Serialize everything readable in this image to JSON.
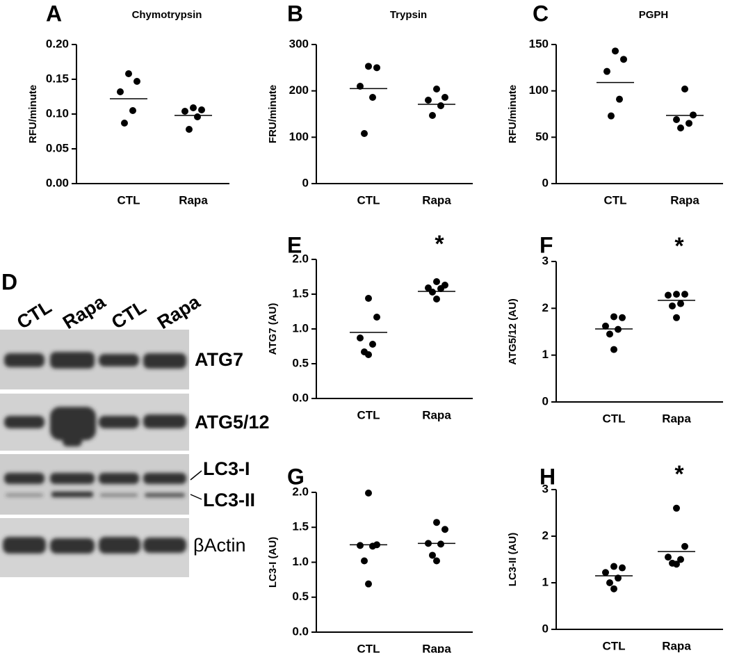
{
  "chart_data": [
    {
      "type": "dot",
      "label": "A",
      "title": "Chymotrypsin",
      "ylabel": "RFU/minute",
      "categories": [
        "CTL",
        "Rapa"
      ],
      "values": [
        [
          0.158,
          0.147,
          0.132,
          0.105,
          0.087
        ],
        [
          0.109,
          0.106,
          0.104,
          0.096,
          0.078
        ]
      ],
      "means": [
        0.122,
        0.098
      ],
      "ylim": [
        0,
        0.2
      ],
      "yticks": [
        {
          "value": 0,
          "label": "0.00"
        },
        0.05,
        {
          "value": 0.1,
          "label": "0.10"
        },
        0.15,
        {
          "value": 0.2,
          "label": "0.20"
        }
      ],
      "color": "#000000"
    },
    {
      "type": "dot",
      "label": "B",
      "title": "Trypsin",
      "ylabel": "FRU/minute",
      "categories": [
        "CTL",
        "Rapa"
      ],
      "values": [
        [
          253,
          250,
          210,
          186,
          108
        ],
        [
          204,
          186,
          180,
          168,
          147
        ]
      ],
      "means": [
        205,
        171
      ],
      "ylim": [
        0,
        300
      ],
      "yticks": [
        0,
        100,
        200,
        300
      ],
      "color": "#000000"
    },
    {
      "type": "dot",
      "label": "C",
      "title": "PGPH",
      "ylabel": "RFU/minute",
      "categories": [
        "CTL",
        "Rapa"
      ],
      "values": [
        [
          143,
          134,
          121,
          91,
          73
        ],
        [
          102,
          74,
          69,
          65,
          60
        ]
      ],
      "means": [
        109,
        73.5
      ],
      "ylim": [
        0,
        150
      ],
      "yticks": [
        0,
        50,
        100,
        150
      ],
      "color": "#000000"
    },
    {
      "type": "dot",
      "label": "E",
      "ylabel": "ATG7 (AU)",
      "annotation": "*",
      "categories": [
        "CTL",
        "Rapa"
      ],
      "values": [
        [
          1.44,
          1.17,
          0.87,
          0.78,
          0.67,
          0.63
        ],
        [
          1.68,
          1.63,
          1.59,
          1.58,
          1.53,
          1.43
        ]
      ],
      "means": [
        0.95,
        1.54
      ],
      "ylim": [
        0,
        2
      ],
      "yticks": [
        {
          "value": 0,
          "label": "0.0"
        },
        0.5,
        {
          "value": 1,
          "label": "1.0"
        },
        1.5,
        {
          "value": 2,
          "label": "2.0"
        }
      ],
      "color": "#000000"
    },
    {
      "type": "dot",
      "label": "F",
      "ylabel": "ATG5/12 (AU)",
      "annotation": "*",
      "categories": [
        "CTL",
        "Rapa"
      ],
      "values": [
        [
          1.82,
          1.8,
          1.62,
          1.55,
          1.45,
          1.12
        ],
        [
          2.3,
          2.3,
          2.28,
          2.1,
          2.05,
          1.8
        ]
      ],
      "means": [
        1.56,
        2.17
      ],
      "ylim": [
        0,
        3
      ],
      "yticks": [
        0,
        1,
        2,
        3
      ],
      "color": "#000000"
    },
    {
      "type": "dot",
      "label": "G",
      "ylabel": "LC3-I (AU)",
      "categories": [
        "CTL",
        "Rapa"
      ],
      "values": [
        [
          1.99,
          1.25,
          1.24,
          1.23,
          1.02,
          0.69
        ],
        [
          1.57,
          1.47,
          1.27,
          1.26,
          1.1,
          1.02
        ]
      ],
      "means": [
        1.25,
        1.27
      ],
      "ylim": [
        0,
        2
      ],
      "yticks": [
        {
          "value": 0,
          "label": "0.0"
        },
        0.5,
        {
          "value": 1,
          "label": "1.0"
        },
        1.5,
        {
          "value": 2,
          "label": "2.0"
        }
      ],
      "color": "#000000"
    },
    {
      "type": "dot",
      "label": "H",
      "ylabel": "LC3-II (AU)",
      "annotation": "*",
      "categories": [
        "CTL",
        "Rapa"
      ],
      "values": [
        [
          1.35,
          1.32,
          1.22,
          1.1,
          1.0,
          0.87
        ],
        [
          2.6,
          1.78,
          1.55,
          1.5,
          1.42,
          1.4
        ]
      ],
      "means": [
        1.15,
        1.67
      ],
      "ylim": [
        0,
        3
      ],
      "yticks": [
        0,
        1,
        2,
        3
      ],
      "color": "#000000"
    }
  ],
  "blot": {
    "label": "D",
    "lanes": [
      "CTL",
      "Rapa",
      "CTL",
      "Rapa"
    ],
    "bands": [
      "ATG7",
      "ATG5/12",
      "LC3-I",
      "LC3-II",
      "βActin"
    ]
  }
}
